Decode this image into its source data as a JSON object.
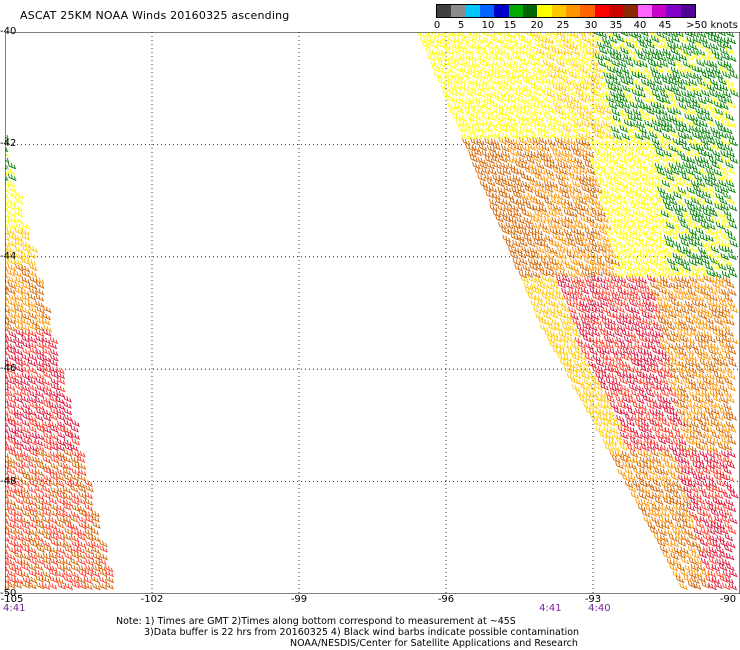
{
  "title": "ASCAT 25KM NOAA Winds 20160325 ascending",
  "legend": {
    "labels": [
      "0",
      "5",
      "10",
      "15",
      "20",
      "25",
      "30",
      "35",
      "40",
      "45",
      ">50 knots"
    ],
    "colors": [
      "#404040",
      "#8c8c8c",
      "#00c8ff",
      "#0064ff",
      "#0000c8",
      "#00aa00",
      "#006400",
      "#ffff00",
      "#ffc800",
      "#ff9600",
      "#ff6400",
      "#ff0000",
      "#c80000",
      "#8c2800",
      "#ff64ff",
      "#c800c8",
      "#8200c8",
      "#500096"
    ]
  },
  "axes": {
    "lat_ticks": [
      "-40",
      "-42",
      "-44",
      "-46",
      "-48",
      "-50"
    ],
    "lon_ticks": [
      "-105",
      "-102",
      "-99",
      "-96",
      "-93",
      "-90"
    ]
  },
  "times": [
    {
      "label": "4:41",
      "at_lon": -105
    },
    {
      "label": "4:41",
      "at_lon": -94.1
    },
    {
      "label": "4:40",
      "at_lon": -93.1
    }
  ],
  "notes": {
    "line1": "Note: 1) Times are GMT 2)Times along bottom correspond to measurement at ~45S",
    "line2": "3)Data buffer is 22 hrs from 20160325 4) Black wind barbs indicate possible contamination",
    "line3": "NOAA/NESDIS/Center for Satellite Applications and Research"
  },
  "wind_colors": {
    "green": "#008000",
    "yellow": "#ffff00",
    "gold": "#ffc800",
    "orange": "#ff9600",
    "dark_orange": "#d26400",
    "red_orange": "#ff3c28",
    "crimson": "#dc143c"
  }
}
